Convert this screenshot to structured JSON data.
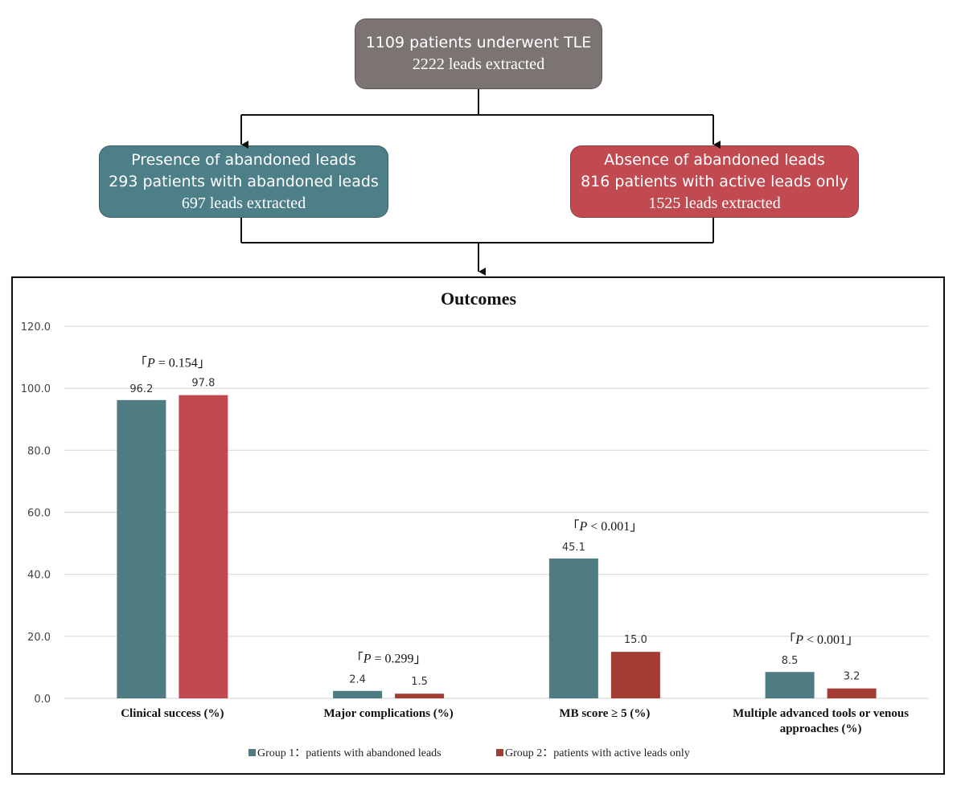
{
  "flowchart": {
    "top": {
      "line1": "1109 patients underwent TLE",
      "line2": "2222 leads extracted"
    },
    "left": {
      "line1": "Presence of abandoned leads",
      "line2": "293 patients with abandoned leads",
      "line3": "697 leads extracted",
      "color": "#4d7f88"
    },
    "right": {
      "line1": "Absence of abandoned leads",
      "line2": "816 patients with active leads only",
      "line3": "1525 leads extracted",
      "color": "#c14a51"
    },
    "top_color": "#7b7473"
  },
  "chart_data": {
    "type": "bar",
    "title": "Outcomes",
    "categories": [
      "Clinical success (%)",
      "Major complications (%)",
      "MB score ≥ 5 (%)",
      "Multiple advanced tools or venous approaches (%)"
    ],
    "category_lines": [
      [
        "Clinical success (%)"
      ],
      [
        "Major complications (%)"
      ],
      [
        "MB score ≥ 5 (%)"
      ],
      [
        "Multiple advanced tools or venous",
        "approaches (%)"
      ]
    ],
    "series": [
      {
        "name": "Group 1：patients with abandoned leads",
        "values": [
          96.2,
          2.4,
          45.1,
          8.5
        ],
        "labels": [
          "96.2",
          "2.4",
          "45.1",
          "8.5"
        ],
        "color": "#4f7c83"
      },
      {
        "name": "Group 2：patients with active leads only",
        "values": [
          97.8,
          1.5,
          15.0,
          3.2
        ],
        "labels": [
          "97.8",
          "1.5",
          "15.0",
          "3.2"
        ],
        "colors": [
          "#c14a51",
          "#a33c33",
          "#a33c33",
          "#a33c33"
        ],
        "legend_color": "#a33c33"
      }
    ],
    "p_values": [
      "P = 0.154",
      "P = 0.299",
      "P < 0.001",
      "P < 0.001"
    ],
    "ylim": [
      0,
      120
    ],
    "yticks": [
      "0.0",
      "20.0",
      "40.0",
      "60.0",
      "80.0",
      "100.0",
      "120.0"
    ],
    "grid": true,
    "legend_position": "bottom"
  }
}
